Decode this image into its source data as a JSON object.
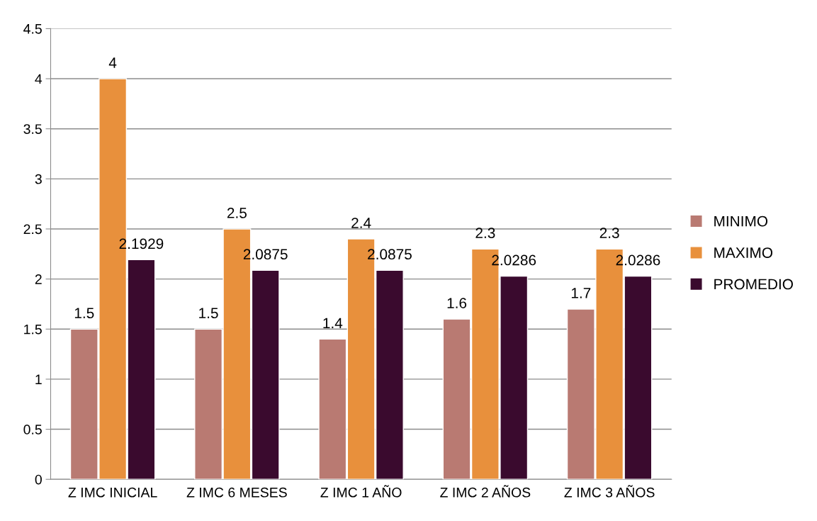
{
  "chart_data": {
    "type": "bar",
    "categories": [
      "Z IMC INICIAL",
      "Z IMC 6 MESES",
      "Z IMC 1 AÑO",
      "Z IMC 2 AÑOS",
      "Z IMC 3 AÑOS"
    ],
    "series": [
      {
        "name": "MINIMO",
        "color": "#b97a72",
        "values": [
          1.5,
          1.5,
          1.4,
          1.6,
          1.7
        ]
      },
      {
        "name": "MAXIMO",
        "color": "#e8903c",
        "values": [
          4,
          2.5,
          2.4,
          2.3,
          2.3
        ]
      },
      {
        "name": "PROMEDIO",
        "color": "#3a0a2e",
        "values": [
          2.1929,
          2.0875,
          2.0875,
          2.0286,
          2.0286
        ]
      }
    ],
    "ylim": [
      0,
      4.5
    ],
    "yticks": [
      0,
      0.5,
      1,
      1.5,
      2,
      2.5,
      3,
      3.5,
      4,
      4.5
    ],
    "grid": "y",
    "legend": "right",
    "data_labels": true
  }
}
